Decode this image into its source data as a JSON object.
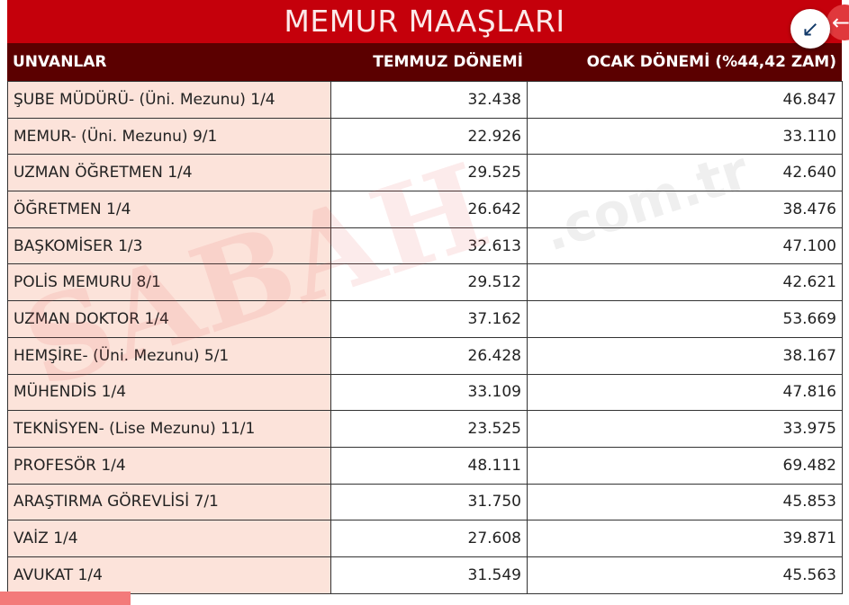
{
  "title": "MEMUR MAAŞLARI",
  "headers": [
    "UNVANLAR",
    "TEMMUZ DÖNEMİ",
    "OCAK DÖNEMİ (%44,42 ZAM)"
  ],
  "rows": [
    [
      "ŞUBE MÜDÜRÜ- (Üni. Mezunu) 1/4",
      "32.438",
      "46.847"
    ],
    [
      "MEMUR- (Üni. Mezunu) 9/1",
      "22.926",
      "33.110"
    ],
    [
      "UZMAN ÖĞRETMEN 1/4",
      "29.525",
      "42.640"
    ],
    [
      "ÖĞRETMEN 1/4",
      "26.642",
      "38.476"
    ],
    [
      "BAŞKOMİSER 1/3",
      "32.613",
      "47.100"
    ],
    [
      "POLİS MEMURU 8/1",
      "29.512",
      "42.621"
    ],
    [
      "UZMAN DOKTOR 1/4",
      "37.162",
      "53.669"
    ],
    [
      "HEMŞİRE- (Üni. Mezunu) 5/1",
      "26.428",
      "38.167"
    ],
    [
      "MÜHENDİS 1/4",
      "33.109",
      "47.816"
    ],
    [
      "TEKNİSYEN- (Lise Mezunu) 11/1",
      "23.525",
      "33.975"
    ],
    [
      "PROFESÖR 1/4",
      "48.111",
      "69.482"
    ],
    [
      "ARAŞTIRMA GÖREVLİSİ 7/1",
      "31.750",
      "45.853"
    ],
    [
      "VAİZ 1/4",
      "27.608",
      "39.871"
    ],
    [
      "AVUKAT 1/4",
      "31.549",
      "45.563"
    ]
  ],
  "watermark": "SABAH.com.tr",
  "colors": {
    "title_bg": "#c5000b",
    "header_bg": "#5b0000",
    "first_col_bg": "#fce3da"
  },
  "icons": {
    "expand": "collapse-arrows-icon",
    "back": "arrow-left-icon"
  }
}
